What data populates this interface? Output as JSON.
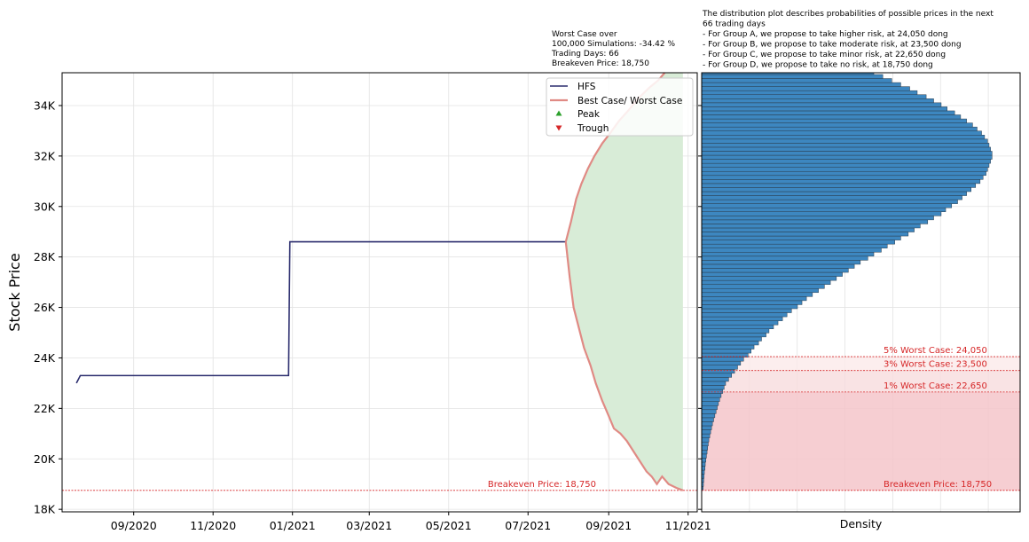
{
  "annotations": {
    "worst_case_box": [
      "Worst Case over",
      "100,000 Simulations: -34.42 %",
      "Trading Days: 66",
      "Breakeven Price: 18,750"
    ],
    "distribution_note": [
      "The distribution plot describes probabilities of possible prices in the next",
      "66 trading days",
      "- For Group A, we propose to take higher risk, at 24,050 dong",
      "- For Group B, we propose to take moderate risk, at 23,500 dong",
      "- For Group C, we propose to take minor risk, at 22,650 dong",
      "- For Group D, we propose to take no risk, at 18,750 dong"
    ]
  },
  "colors": {
    "hfs": "#2b2d6e",
    "envelope": "#e08a84",
    "fill": "#d8ecd7",
    "hist": "#3d87c0",
    "red": "#d62728",
    "peak": "#2ca02c",
    "trough": "#d62728"
  },
  "chart_data": [
    {
      "type": "line",
      "ylabel": "Stock Price",
      "ylim": [
        17900,
        35300
      ],
      "xlim": [
        "2020-07-08",
        "2021-11-08"
      ],
      "x_ticks": [
        "09/2020",
        "11/2020",
        "01/2021",
        "03/2021",
        "05/2021",
        "07/2021",
        "09/2021",
        "11/2021"
      ],
      "x_tick_dates": [
        "2020-09-01",
        "2020-11-01",
        "2021-01-01",
        "2021-03-01",
        "2021-05-01",
        "2021-07-01",
        "2021-09-01",
        "2021-11-01"
      ],
      "y_ticks": [
        18000,
        20000,
        22000,
        24000,
        26000,
        28000,
        30000,
        32000,
        34000
      ],
      "y_tick_labels": [
        "18K",
        "20K",
        "22K",
        "24K",
        "26K",
        "28K",
        "30K",
        "32K",
        "34K"
      ],
      "grid": true,
      "legend": {
        "position": "top-right",
        "entries": [
          "HFS",
          "Best Case/ Worst Case",
          "Peak",
          "Trough"
        ]
      },
      "hfs_series": {
        "name": "HFS",
        "points": [
          [
            "2020-07-19",
            23000
          ],
          [
            "2020-07-22",
            23300
          ],
          [
            "2020-12-29",
            23300
          ],
          [
            "2020-12-30",
            28600
          ],
          [
            "2021-07-30",
            28600
          ]
        ]
      },
      "envelope": {
        "name": "Best Case/ Worst Case",
        "best": [
          [
            "2021-07-30",
            28600
          ],
          [
            "2021-08-03",
            29400
          ],
          [
            "2021-08-07",
            30300
          ],
          [
            "2021-08-11",
            30900
          ],
          [
            "2021-08-16",
            31500
          ],
          [
            "2021-08-21",
            32000
          ],
          [
            "2021-08-27",
            32500
          ],
          [
            "2021-09-02",
            32900
          ],
          [
            "2021-09-09",
            33400
          ],
          [
            "2021-09-16",
            33800
          ],
          [
            "2021-09-24",
            34300
          ],
          [
            "2021-10-02",
            34700
          ],
          [
            "2021-10-09",
            35000
          ],
          [
            "2021-10-14",
            35300
          ]
        ],
        "worst": [
          [
            "2021-07-30",
            28600
          ],
          [
            "2021-08-02",
            27200
          ],
          [
            "2021-08-05",
            26000
          ],
          [
            "2021-08-09",
            25200
          ],
          [
            "2021-08-13",
            24400
          ],
          [
            "2021-08-18",
            23700
          ],
          [
            "2021-08-22",
            23000
          ],
          [
            "2021-08-27",
            22300
          ],
          [
            "2021-09-01",
            21700
          ],
          [
            "2021-09-05",
            21200
          ],
          [
            "2021-09-10",
            21000
          ],
          [
            "2021-09-15",
            20700
          ],
          [
            "2021-09-20",
            20300
          ],
          [
            "2021-09-25",
            19900
          ],
          [
            "2021-09-30",
            19500
          ],
          [
            "2021-10-04",
            19300
          ],
          [
            "2021-10-08",
            19000
          ],
          [
            "2021-10-12",
            19300
          ],
          [
            "2021-10-17",
            19000
          ],
          [
            "2021-10-23",
            18850
          ],
          [
            "2021-10-28",
            18750
          ]
        ],
        "fill_top": 35300,
        "fill_end": "2021-10-28"
      },
      "breakeven": {
        "value": 18750,
        "label": "Breakeven Price: 18,750"
      }
    },
    {
      "type": "bar",
      "orientation": "horizontal",
      "xlabel": "Density",
      "ylim": [
        17900,
        35300
      ],
      "xlim": [
        0,
        1
      ],
      "grid": true,
      "bins": {
        "start": 18750,
        "width": 160,
        "relative_density": [
          0.005,
          0.006,
          0.007,
          0.008,
          0.009,
          0.011,
          0.012,
          0.014,
          0.016,
          0.018,
          0.02,
          0.022,
          0.024,
          0.027,
          0.03,
          0.033,
          0.036,
          0.04,
          0.044,
          0.048,
          0.052,
          0.056,
          0.06,
          0.065,
          0.07,
          0.075,
          0.08,
          0.09,
          0.1,
          0.11,
          0.12,
          0.13,
          0.14,
          0.155,
          0.165,
          0.175,
          0.19,
          0.2,
          0.215,
          0.225,
          0.24,
          0.255,
          0.27,
          0.285,
          0.3,
          0.32,
          0.335,
          0.35,
          0.37,
          0.39,
          0.41,
          0.43,
          0.45,
          0.47,
          0.49,
          0.51,
          0.53,
          0.555,
          0.575,
          0.6,
          0.62,
          0.645,
          0.665,
          0.69,
          0.71,
          0.73,
          0.755,
          0.775,
          0.8,
          0.815,
          0.835,
          0.855,
          0.87,
          0.885,
          0.9,
          0.915,
          0.93,
          0.94,
          0.95,
          0.955,
          0.96,
          0.965,
          0.97,
          0.97,
          0.965,
          0.96,
          0.955,
          0.945,
          0.935,
          0.92,
          0.905,
          0.885,
          0.865,
          0.845,
          0.82,
          0.8,
          0.775,
          0.75,
          0.72,
          0.695,
          0.665,
          0.635,
          0.605,
          0.575,
          0.545,
          0.515,
          0.485,
          0.455,
          0.425,
          0.4,
          0.37,
          0.345,
          0.32,
          0.295,
          0.27,
          0.25,
          0.23,
          0.21,
          0.19,
          0.17,
          0.155,
          0.14,
          0.125,
          0.11,
          0.1,
          0.09,
          0.08,
          0.07
        ]
      },
      "risk_levels": [
        {
          "value": 24050,
          "label": "5% Worst Case: 24,050"
        },
        {
          "value": 23500,
          "label": "3% Worst Case: 23,500"
        },
        {
          "value": 22650,
          "label": "1% Worst Case: 22,650"
        },
        {
          "value": 18750,
          "label": "Breakeven Price: 18,750"
        }
      ]
    }
  ]
}
